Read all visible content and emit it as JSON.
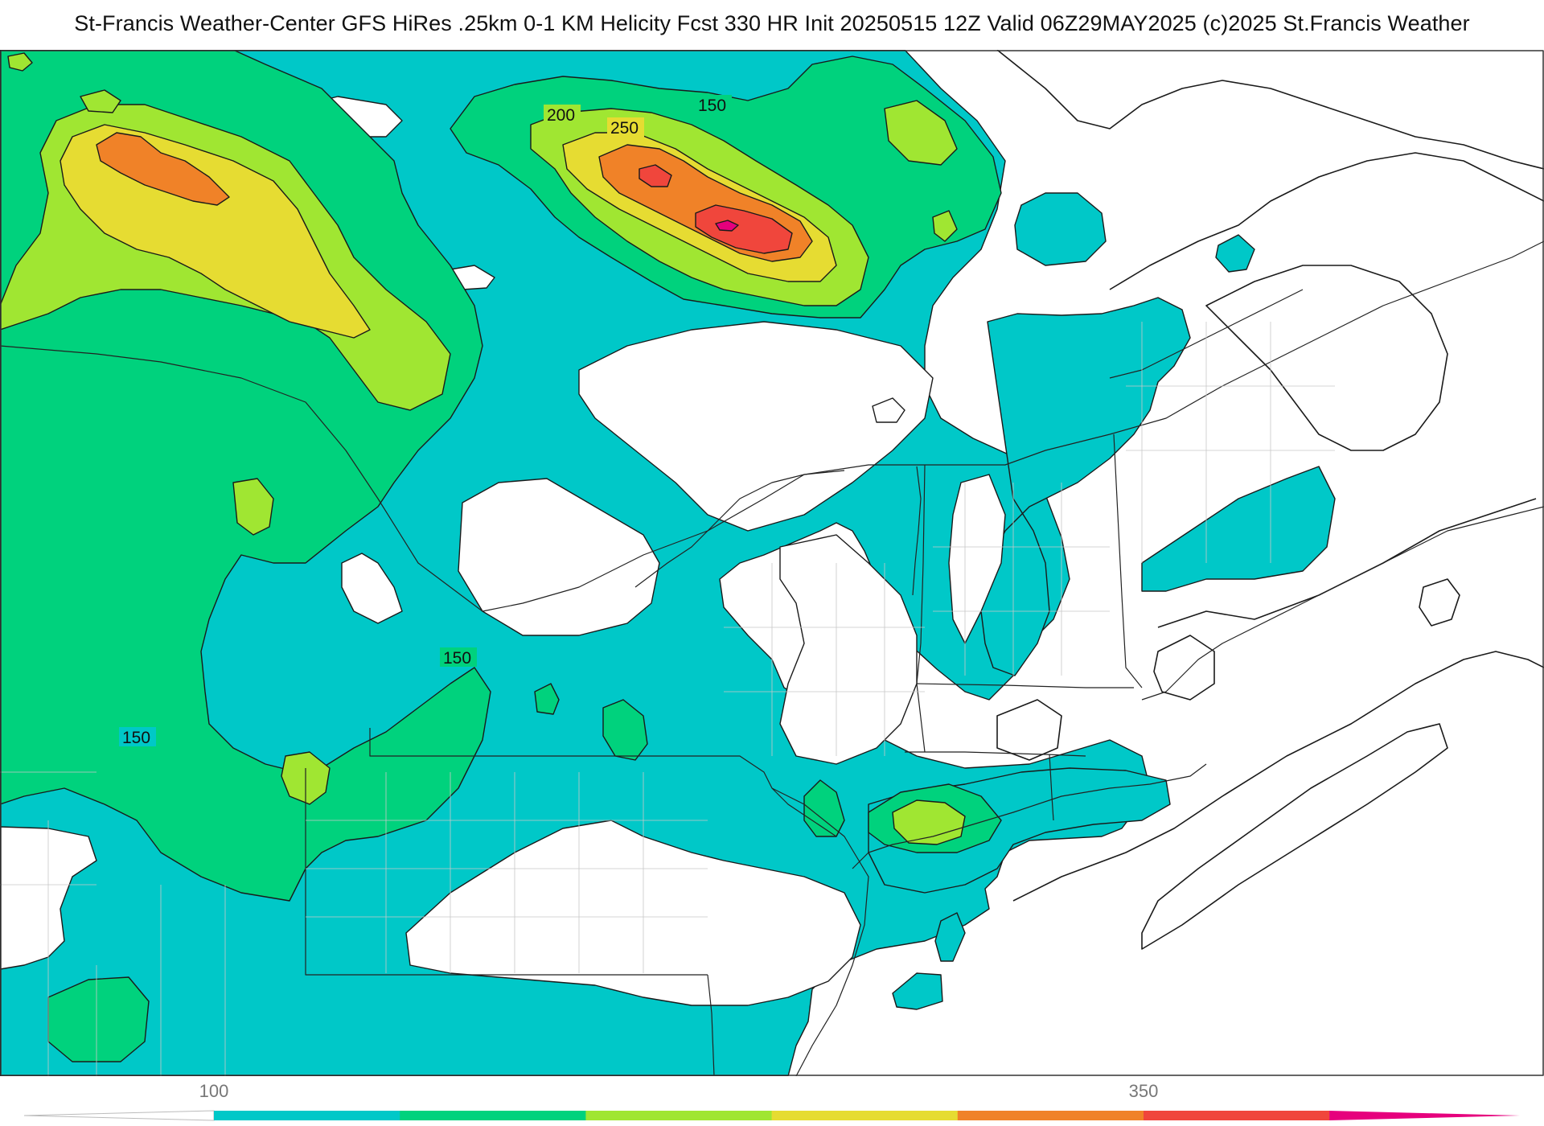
{
  "title": "St-Francis Weather-Center GFS HiRes .25km 0-1 KM Helicity Fcst 330 HR Init 20250515 12Z  Valid 06Z29MAY2025    (c)2025 St.Francis Weather",
  "contour_labels": [
    "200",
    "250",
    "150",
    "150",
    "150"
  ],
  "colorbar": {
    "tick_labels": [
      "100",
      "350"
    ],
    "colors": [
      "#00c8c8",
      "#00d27d",
      "#a0e632",
      "#e6dc32",
      "#f08228",
      "#f0463c",
      "#e6007d"
    ]
  },
  "palette": {
    "cyan": "#00c8c8",
    "green": "#00d27d",
    "lime": "#a0e632",
    "yellow": "#e6dc32",
    "orange": "#f08228",
    "red": "#f0463c",
    "magenta": "#e6007d"
  }
}
